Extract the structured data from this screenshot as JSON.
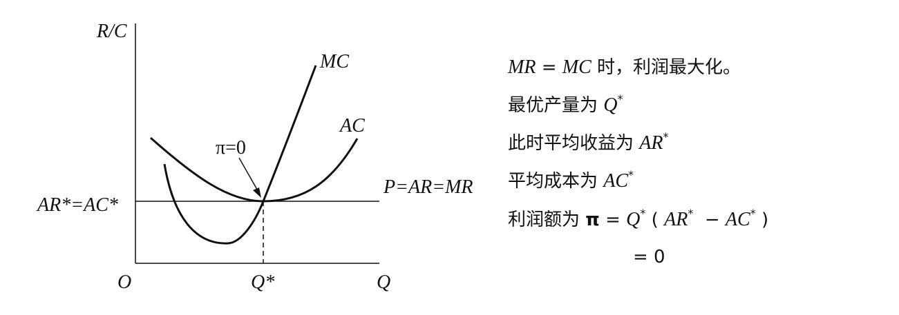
{
  "graph": {
    "y_axis_label": "R/C",
    "origin_label": "O",
    "x_axis_label": "Q",
    "x_mark_label": "Q*",
    "y_mark_label": "AR*=AC*",
    "price_line_label": "P=AR=MR",
    "mc_label": "MC",
    "ac_label": "AC",
    "annotation": "π=0"
  },
  "notes": [
    [
      "MR",
      " = ",
      "MC",
      " 时，利润最大化。"
    ],
    [
      "最优产量为 ",
      "Q",
      "*"
    ],
    [
      "此时平均收益为 ",
      "AR",
      "*"
    ],
    [
      "平均成本为 ",
      "AC",
      "*"
    ],
    [
      "利润额为 ",
      "π",
      " = ",
      "Q",
      "*",
      " ( ",
      "AR",
      "*",
      "  − ",
      "AC",
      "*",
      " )"
    ],
    [
      "= 0"
    ]
  ]
}
